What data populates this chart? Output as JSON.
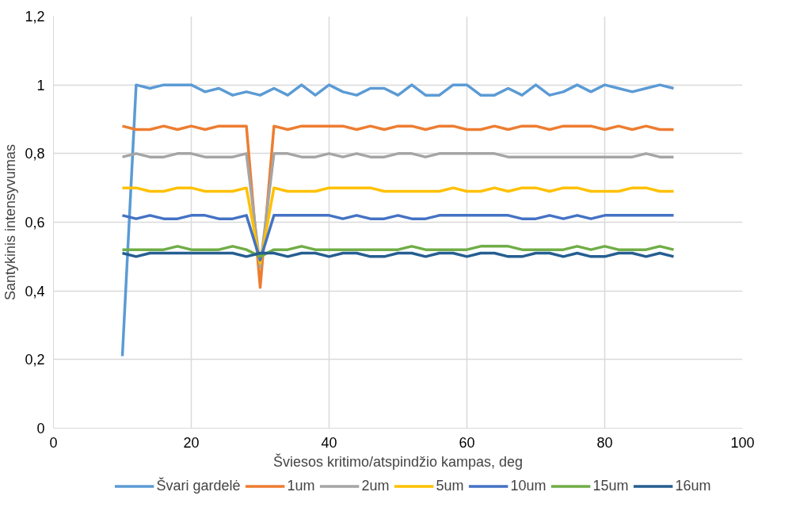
{
  "chart_data": {
    "type": "line",
    "xlabel": "Šviesos kritimo/atspindžio kampas, deg",
    "ylabel": "Santykinis intensyvumas",
    "x": [
      10,
      12,
      14,
      16,
      18,
      20,
      22,
      24,
      26,
      28,
      30,
      32,
      34,
      36,
      38,
      40,
      42,
      44,
      46,
      48,
      50,
      52,
      54,
      56,
      58,
      60,
      62,
      64,
      66,
      68,
      70,
      72,
      74,
      76,
      78,
      80,
      82,
      84,
      86,
      88,
      90
    ],
    "series": [
      {
        "name": "Švari gardelė",
        "color": "#5b9bd5",
        "values": [
          0.21,
          1.0,
          0.99,
          1.0,
          1.0,
          1.0,
          0.98,
          0.99,
          0.97,
          0.98,
          0.97,
          0.99,
          0.97,
          1.0,
          0.97,
          1.0,
          0.98,
          0.97,
          0.99,
          0.99,
          0.97,
          1.0,
          0.97,
          0.97,
          1.0,
          1.0,
          0.97,
          0.97,
          0.99,
          0.97,
          1.0,
          0.97,
          0.98,
          1.0,
          0.98,
          1.0,
          0.99,
          0.98,
          0.99,
          1.0,
          0.99
        ]
      },
      {
        "name": "1um",
        "color": "#ed7d31",
        "values": [
          0.88,
          0.87,
          0.87,
          0.88,
          0.87,
          0.88,
          0.87,
          0.88,
          0.88,
          0.88,
          0.41,
          0.88,
          0.87,
          0.88,
          0.88,
          0.88,
          0.88,
          0.87,
          0.88,
          0.87,
          0.88,
          0.88,
          0.87,
          0.88,
          0.88,
          0.87,
          0.87,
          0.88,
          0.87,
          0.88,
          0.88,
          0.87,
          0.88,
          0.88,
          0.88,
          0.87,
          0.88,
          0.87,
          0.88,
          0.87,
          0.87
        ]
      },
      {
        "name": "2um",
        "color": "#a5a5a5",
        "values": [
          0.79,
          0.8,
          0.79,
          0.79,
          0.8,
          0.8,
          0.79,
          0.79,
          0.79,
          0.8,
          0.47,
          0.8,
          0.8,
          0.79,
          0.79,
          0.8,
          0.79,
          0.8,
          0.79,
          0.79,
          0.8,
          0.8,
          0.79,
          0.8,
          0.8,
          0.8,
          0.8,
          0.8,
          0.79,
          0.79,
          0.79,
          0.79,
          0.79,
          0.79,
          0.79,
          0.79,
          0.79,
          0.79,
          0.8,
          0.79,
          0.79
        ]
      },
      {
        "name": "5um",
        "color": "#ffc000",
        "values": [
          0.7,
          0.7,
          0.69,
          0.69,
          0.7,
          0.7,
          0.69,
          0.69,
          0.69,
          0.7,
          0.48,
          0.7,
          0.69,
          0.69,
          0.69,
          0.7,
          0.7,
          0.7,
          0.7,
          0.69,
          0.69,
          0.69,
          0.69,
          0.69,
          0.7,
          0.69,
          0.69,
          0.7,
          0.69,
          0.7,
          0.7,
          0.69,
          0.7,
          0.7,
          0.69,
          0.69,
          0.69,
          0.7,
          0.7,
          0.69,
          0.69
        ]
      },
      {
        "name": "10um",
        "color": "#4472c4",
        "values": [
          0.62,
          0.61,
          0.62,
          0.61,
          0.61,
          0.62,
          0.62,
          0.61,
          0.61,
          0.62,
          0.49,
          0.62,
          0.62,
          0.62,
          0.62,
          0.62,
          0.61,
          0.62,
          0.61,
          0.61,
          0.62,
          0.61,
          0.61,
          0.62,
          0.62,
          0.62,
          0.62,
          0.62,
          0.62,
          0.61,
          0.61,
          0.62,
          0.61,
          0.62,
          0.61,
          0.62,
          0.62,
          0.62,
          0.62,
          0.62,
          0.62
        ]
      },
      {
        "name": "15um",
        "color": "#70ad47",
        "values": [
          0.52,
          0.52,
          0.52,
          0.52,
          0.53,
          0.52,
          0.52,
          0.52,
          0.53,
          0.52,
          0.5,
          0.52,
          0.52,
          0.53,
          0.52,
          0.52,
          0.52,
          0.52,
          0.52,
          0.52,
          0.52,
          0.53,
          0.52,
          0.52,
          0.52,
          0.52,
          0.53,
          0.53,
          0.53,
          0.52,
          0.52,
          0.52,
          0.52,
          0.53,
          0.52,
          0.53,
          0.52,
          0.52,
          0.52,
          0.53,
          0.52
        ]
      },
      {
        "name": "16um",
        "color": "#255e91",
        "values": [
          0.51,
          0.5,
          0.51,
          0.51,
          0.51,
          0.51,
          0.51,
          0.51,
          0.51,
          0.5,
          0.51,
          0.51,
          0.5,
          0.51,
          0.51,
          0.5,
          0.51,
          0.51,
          0.5,
          0.5,
          0.51,
          0.51,
          0.5,
          0.51,
          0.51,
          0.5,
          0.51,
          0.51,
          0.5,
          0.5,
          0.51,
          0.51,
          0.5,
          0.51,
          0.5,
          0.5,
          0.51,
          0.51,
          0.5,
          0.51,
          0.5
        ]
      }
    ],
    "xlim": [
      0,
      100
    ],
    "xticks": [
      0,
      20,
      40,
      60,
      80,
      100
    ],
    "ylim": [
      0,
      1.2
    ],
    "yticks": [
      {
        "value": 0,
        "label": "0"
      },
      {
        "value": 0.2,
        "label": "0,2"
      },
      {
        "value": 0.4,
        "label": "0,4"
      },
      {
        "value": 0.6,
        "label": "0,6"
      },
      {
        "value": 0.8,
        "label": "0,8"
      },
      {
        "value": 1,
        "label": "1"
      },
      {
        "value": 1.2,
        "label": "1,2"
      }
    ],
    "grid": true,
    "legend": "bottom",
    "marker": "none",
    "line_style": "solid"
  }
}
